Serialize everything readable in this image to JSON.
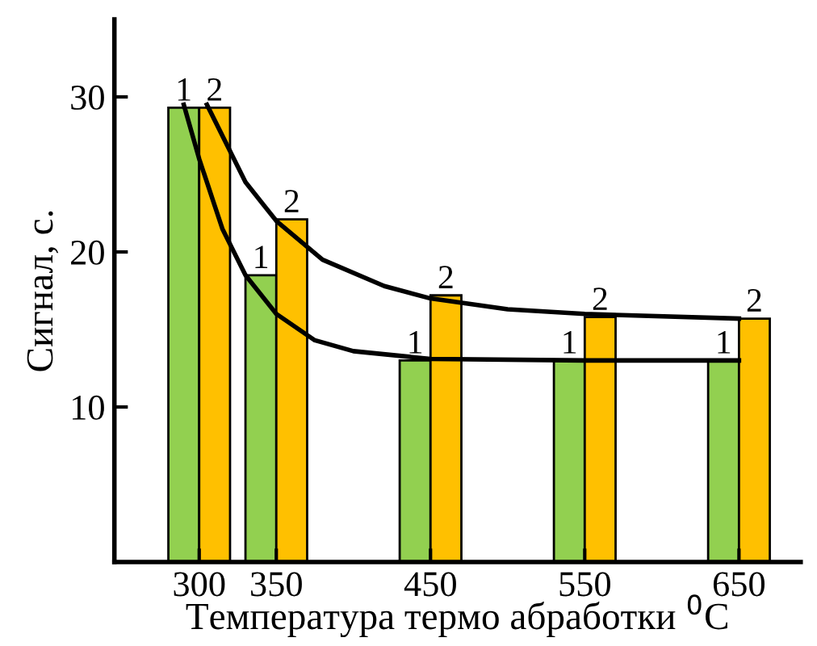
{
  "chart_data": {
    "type": "bar",
    "xlabel": "Температура термо абработки $^{0}$C",
    "ylabel": "Сигнал, с.",
    "x": [
      300,
      350,
      450,
      550,
      650
    ],
    "xlim": [
      245,
      690
    ],
    "xticks": [
      300,
      350,
      450,
      550,
      650
    ],
    "ylim": [
      0,
      35
    ],
    "yticks": [
      10,
      20,
      30
    ],
    "grid": false,
    "series": [
      {
        "name": "1",
        "color": "#92d050",
        "values": [
          29.3,
          18.5,
          13,
          13,
          13
        ]
      },
      {
        "name": "2",
        "color": "#ffc000",
        "values": [
          29.3,
          22.1,
          17.2,
          15.8,
          15.7
        ]
      },
      {
        "type": "line",
        "color": "#000000",
        "x": [
          290,
          300,
          315,
          330,
          350,
          375,
          400,
          450,
          550,
          650
        ],
        "values": [
          29.5,
          26,
          21.5,
          18.5,
          16,
          14.3,
          13.6,
          13.1,
          13,
          13
        ]
      },
      {
        "type": "line",
        "color": "#000000",
        "x": [
          305,
          330,
          350,
          380,
          420,
          450,
          500,
          550,
          650
        ],
        "values": [
          29.5,
          24.5,
          22,
          19.5,
          17.8,
          17,
          16.3,
          16,
          15.7
        ]
      }
    ]
  }
}
